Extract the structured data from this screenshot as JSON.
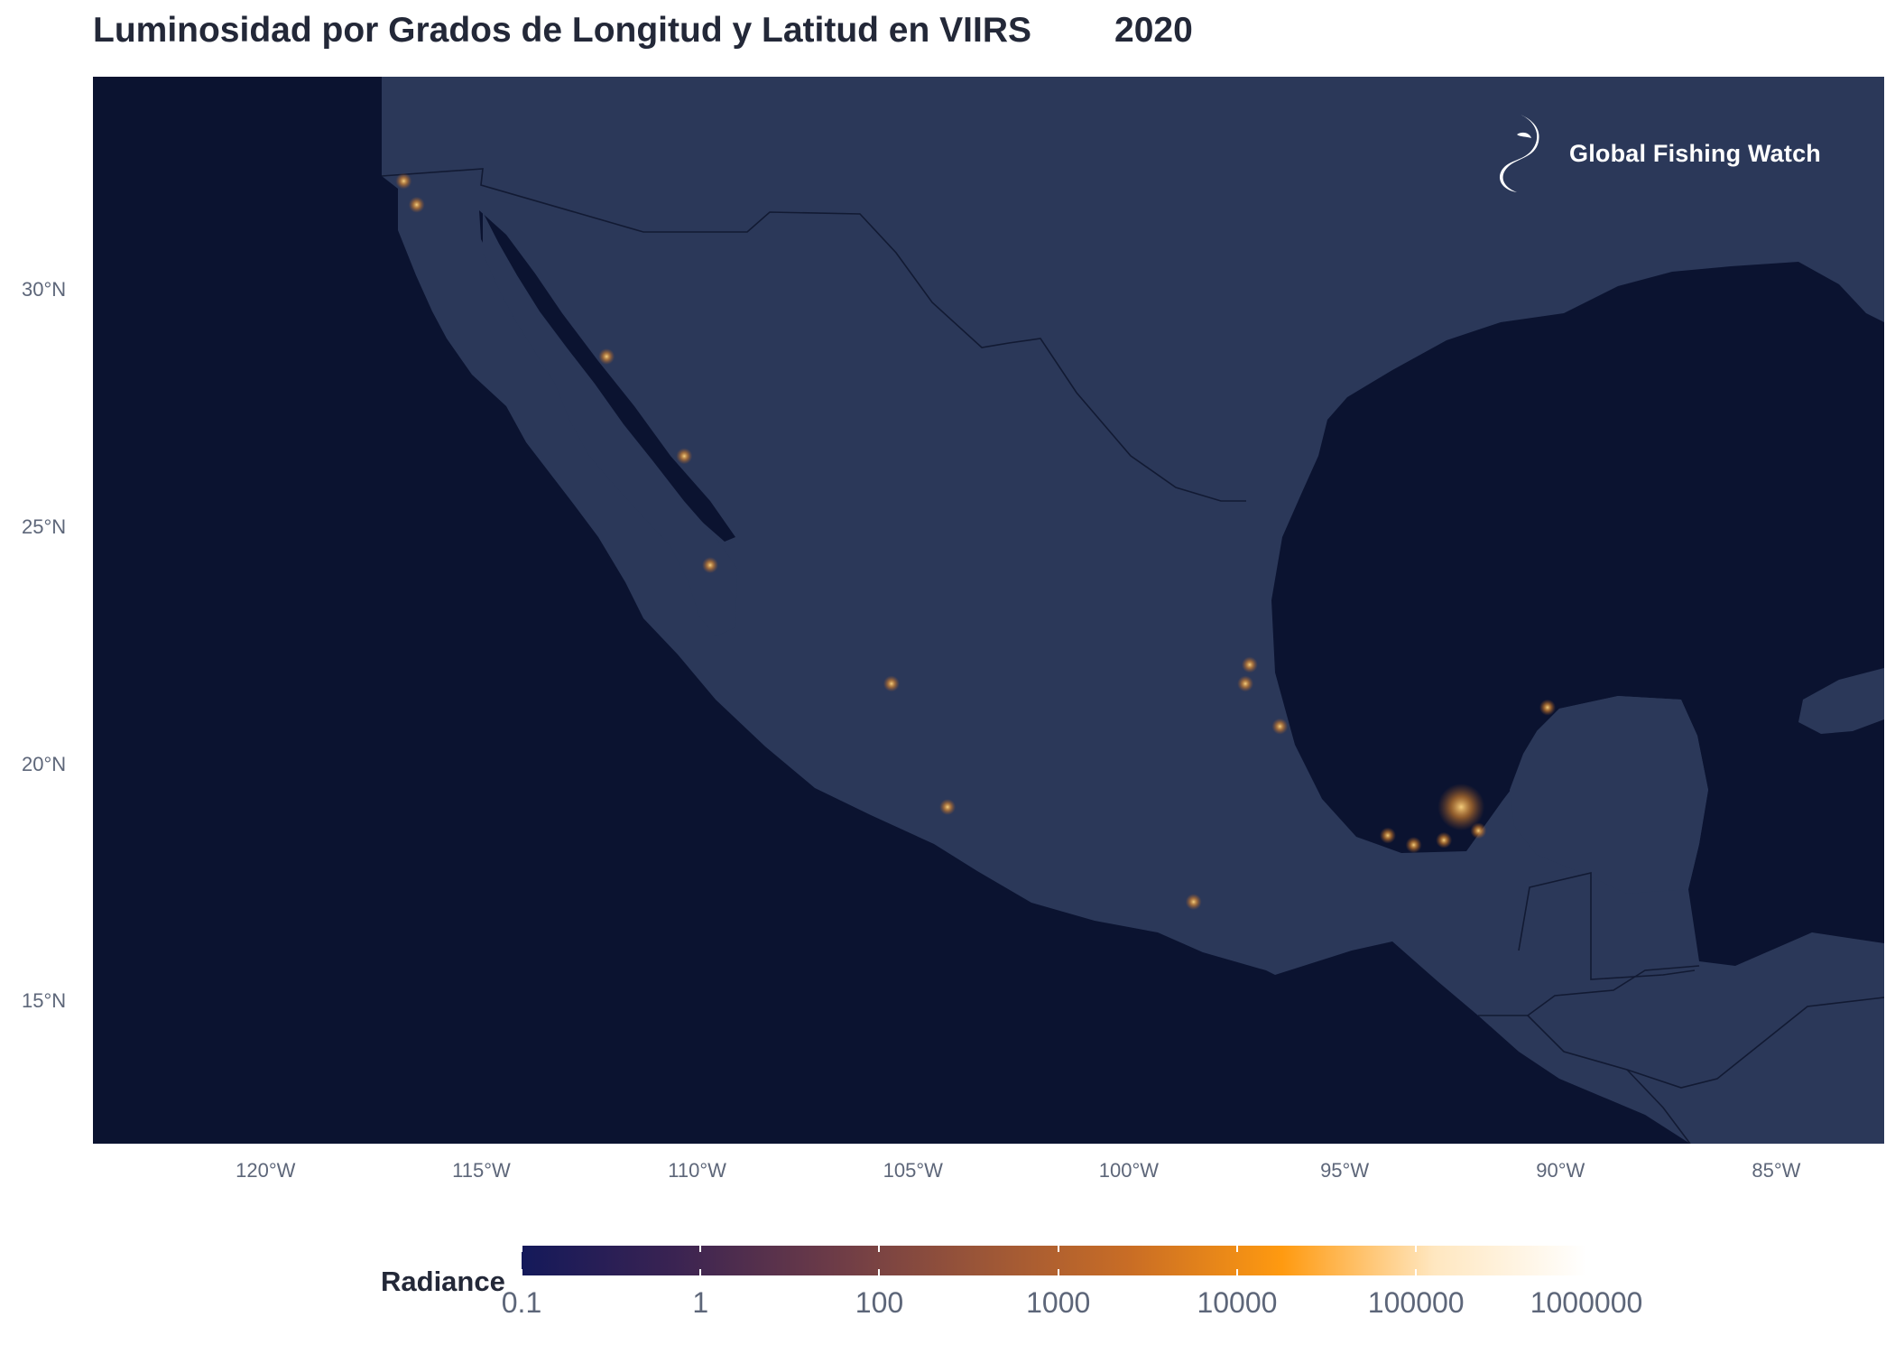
{
  "title": "Luminosidad por Grados de Longitud y Latitud en VIIRS",
  "year": "2020",
  "logo": {
    "text": "Global Fishing Watch",
    "icon": "fish-icon"
  },
  "map": {
    "extent": {
      "lon": [
        -124,
        -82.5
      ],
      "lat": [
        12,
        34.5
      ]
    },
    "colors": {
      "ocean": "#0b1330",
      "land": "#2b3859",
      "border": "#121a33"
    },
    "y_ticks": [
      {
        "label": "30°N",
        "lat": 30
      },
      {
        "label": "25°N",
        "lat": 25
      },
      {
        "label": "20°N",
        "lat": 20
      },
      {
        "label": "15°N",
        "lat": 15
      }
    ],
    "x_ticks": [
      {
        "label": "120°W",
        "lon": -120
      },
      {
        "label": "115°W",
        "lon": -115
      },
      {
        "label": "110°W",
        "lon": -110
      },
      {
        "label": "105°W",
        "lon": -105
      },
      {
        "label": "100°W",
        "lon": -100
      },
      {
        "label": "95°W",
        "lon": -95
      },
      {
        "label": "90°W",
        "lon": -90
      },
      {
        "label": "85°W",
        "lon": -85
      }
    ]
  },
  "legend": {
    "title": "Radiance",
    "colors": [
      "#14195a",
      "#3a2352",
      "#6a3a48",
      "#9a5538",
      "#c96d25",
      "#ff9a10",
      "#ffe7c0",
      "#ffffff"
    ],
    "ticks": [
      {
        "label": "0.1",
        "frac": 0.0
      },
      {
        "label": "1",
        "frac": 0.168
      },
      {
        "label": "100",
        "frac": 0.336
      },
      {
        "label": "1000",
        "frac": 0.504
      },
      {
        "label": "10000",
        "frac": 0.672
      },
      {
        "label": "100000",
        "frac": 0.84
      },
      {
        "label": "1000000",
        "frac": 1.0
      }
    ]
  },
  "hotspots_lonlat": [
    [
      -92.3,
      19.1
    ],
    [
      -92.7,
      18.4
    ],
    [
      -93.4,
      18.3
    ],
    [
      -91.9,
      18.6
    ],
    [
      -96.5,
      20.8
    ],
    [
      -97.2,
      22.1
    ],
    [
      -97.3,
      21.7
    ],
    [
      -109.7,
      24.2
    ],
    [
      -110.3,
      26.5
    ],
    [
      -112.1,
      28.6
    ],
    [
      -116.8,
      32.3
    ],
    [
      -116.5,
      31.8
    ],
    [
      -105.5,
      21.7
    ],
    [
      -104.2,
      19.1
    ],
    [
      -98.5,
      17.1
    ],
    [
      -94.0,
      18.5
    ],
    [
      -90.3,
      21.2
    ]
  ]
}
